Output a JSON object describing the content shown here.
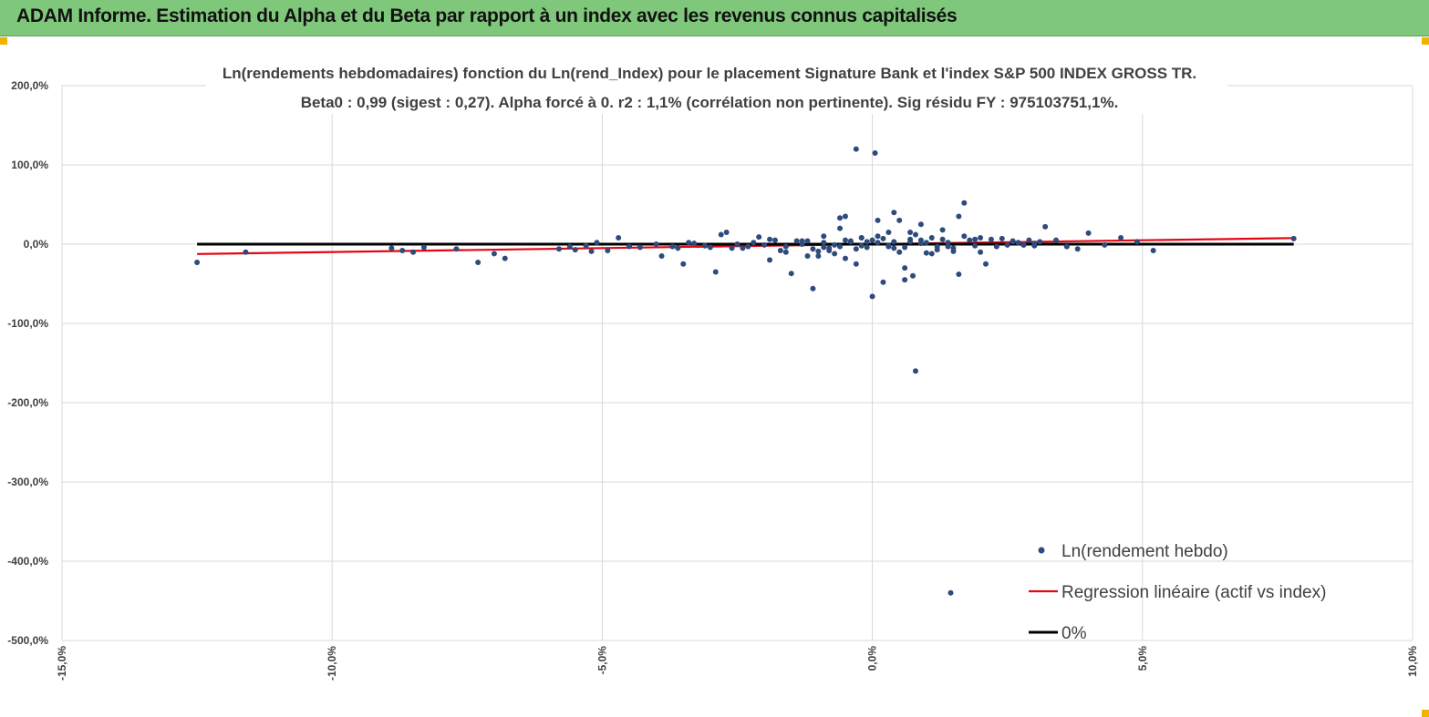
{
  "header": {
    "title": "ADAM Informe. Estimation du Alpha et du Beta par rapport à un index avec les revenus connus capitalisés"
  },
  "colors": {
    "banner": "#7fc77b",
    "points": "#2f4b7c",
    "regression": "#e30613",
    "zero_line": "#000000",
    "grid": "#d9d9d9",
    "corner_marker": "#f0b400"
  },
  "chart_data": {
    "type": "scatter",
    "title": "Ln(rendements hebdomadaires) fonction du Ln(rend_Index) pour le placement Signature Bank et l'index S&P 500 INDEX GROSS TR.",
    "subtitle": "Beta0 : 0,99 (sigest : 0,27). Alpha forcé à 0. r2 : 1,1% (corrélation non pertinente). Sig résidu FY : 975103751,1%.",
    "xlabel": "",
    "ylabel": "",
    "xlim": [
      -15,
      10
    ],
    "ylim": [
      -500,
      200
    ],
    "x_ticks": [
      "-15,0%",
      "-10,0%",
      "-5,0%",
      "0,0%",
      "5,0%",
      "10,0%"
    ],
    "y_ticks": [
      "200,0%",
      "100,0%",
      "0,0%",
      "-100,0%",
      "-200,0%",
      "-300,0%",
      "-400,0%",
      "-500,0%"
    ],
    "grid": true,
    "legend_position": "bottom-right",
    "legend": [
      {
        "label": "Ln(rendement hebdo)",
        "type": "marker"
      },
      {
        "label": "Regression linéaire (actif vs index)",
        "type": "line"
      },
      {
        "label": "0%",
        "type": "line"
      }
    ],
    "series": [
      {
        "name": "Ln(rendement hebdo)",
        "kind": "scatter",
        "x": [
          -12.5,
          -11.6,
          -8.9,
          -8.7,
          -8.5,
          -8.3,
          -7.7,
          -7.3,
          -7.0,
          -6.8,
          -5.8,
          -5.6,
          -5.5,
          -5.3,
          -5.2,
          -5.1,
          -4.9,
          -4.7,
          -4.5,
          -4.3,
          -4.0,
          -3.9,
          -3.7,
          -3.5,
          -3.4,
          -3.3,
          -3.1,
          -2.9,
          -2.7,
          -2.6,
          -2.5,
          -2.3,
          -2.2,
          -2.0,
          -1.9,
          -1.8,
          -1.7,
          -1.6,
          -1.5,
          -1.3,
          -1.2,
          -1.1,
          -1.0,
          -0.9,
          -0.8,
          -0.7,
          -0.6,
          -0.5,
          -0.4,
          -0.3,
          -0.2,
          -0.1,
          0.0,
          0.1,
          0.2,
          0.3,
          0.4,
          0.5,
          0.6,
          0.7,
          0.8,
          0.9,
          1.0,
          1.1,
          1.2,
          1.3,
          1.4,
          1.5,
          1.6,
          1.7,
          1.8,
          1.9,
          2.0,
          2.1,
          2.2,
          2.3,
          2.4,
          2.5,
          2.6,
          2.7,
          2.8,
          2.9,
          3.0,
          3.1,
          3.2,
          3.4,
          3.6,
          3.8,
          4.0,
          4.3,
          4.6,
          4.9,
          5.2,
          7.8,
          -0.3,
          0.05,
          1.7,
          1.6,
          0.75,
          1.45,
          -0.5,
          0.1,
          -1.2,
          -0.6,
          0.3,
          0.6,
          -0.9,
          0.9,
          -1.6,
          -2.8,
          -3.6,
          0.5,
          1.3,
          2.0,
          0.0,
          -0.8,
          -0.2,
          0.4,
          0.7,
          1.1,
          -0.4,
          -1.0,
          2.6,
          3.0,
          -2.1,
          -3.0,
          0.2,
          -0.3,
          0.8,
          1.5,
          -1.4,
          -0.6,
          1.9,
          2.8,
          -2.4,
          -1.9,
          0.3,
          -0.1,
          0.6,
          1.0,
          -0.7,
          -1.3,
          1.2,
          -0.5,
          -0.2,
          0.4,
          0.9,
          -1.1,
          1.4,
          0.1,
          -0.9,
          0.7
        ],
        "y": [
          -23,
          -10,
          -5,
          -8,
          -10,
          -4,
          -6,
          -23,
          -12,
          -18,
          -6,
          -3,
          -7,
          -2,
          -9,
          2,
          -8,
          8,
          -3,
          -4,
          0,
          -15,
          -3,
          -25,
          2,
          1,
          -2,
          -35,
          15,
          -5,
          0,
          -3,
          2,
          -1,
          -20,
          5,
          -8,
          -3,
          -37,
          0,
          4,
          -56,
          -9,
          2,
          -5,
          -12,
          33,
          -18,
          4,
          -25,
          8,
          -4,
          -66,
          10,
          -48,
          -3,
          40,
          -10,
          -45,
          6,
          -160,
          5,
          -11,
          8,
          -3,
          6,
          2,
          -5,
          -38,
          10,
          5,
          -2,
          8,
          -25,
          6,
          -3,
          7,
          -1,
          4,
          2,
          -1,
          5,
          1,
          3,
          22,
          5,
          -3,
          -6,
          14,
          -1,
          8,
          3,
          -8,
          7,
          120,
          115,
          52,
          35,
          -40,
          -440,
          35,
          30,
          -15,
          20,
          15,
          -30,
          10,
          25,
          -10,
          12,
          -5,
          30,
          18,
          -10,
          5,
          -8,
          8,
          -5,
          15,
          -12,
          3,
          -15,
          3,
          -2,
          9,
          -4,
          7,
          -6,
          12,
          -9,
          4,
          -3,
          6,
          -1,
          -5,
          6,
          -2,
          3,
          -4,
          2,
          -1,
          4,
          -7,
          5,
          -2,
          3,
          1,
          -6,
          -3,
          2,
          -4,
          3
        ],
        "color": "#2f4b7c"
      },
      {
        "name": "Regression linéaire (actif vs index)",
        "kind": "line",
        "x": [
          -12.5,
          7.8
        ],
        "y": [
          -12.4,
          7.7
        ],
        "color": "#e30613"
      },
      {
        "name": "0%",
        "kind": "line",
        "x": [
          -12.5,
          7.8
        ],
        "y": [
          0,
          0
        ],
        "color": "#000000"
      }
    ]
  }
}
